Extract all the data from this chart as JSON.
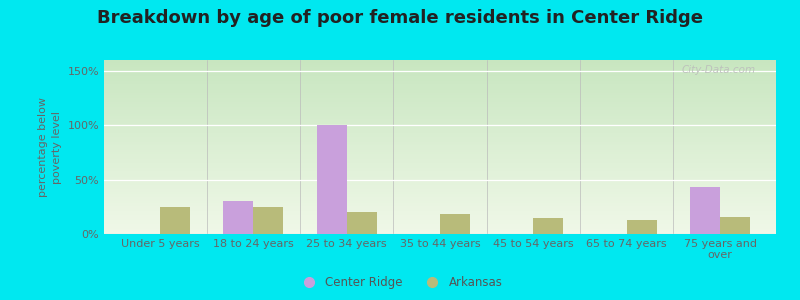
{
  "title": "Breakdown by age of poor female residents in Center Ridge",
  "categories": [
    "Under 5 years",
    "18 to 24 years",
    "25 to 34 years",
    "35 to 44 years",
    "45 to 54 years",
    "65 to 74 years",
    "75 years and\nover"
  ],
  "center_ridge": [
    0,
    30,
    100,
    0,
    0,
    0,
    43
  ],
  "arkansas": [
    25,
    25,
    20,
    18,
    15,
    13,
    16
  ],
  "center_ridge_color": "#c9a0dc",
  "arkansas_color": "#b8bb7a",
  "ylabel": "percentage below\npoverty level",
  "ylim": [
    0,
    160
  ],
  "yticks": [
    0,
    50,
    100,
    150
  ],
  "ytick_labels": [
    "0%",
    "50%",
    "100%",
    "150%"
  ],
  "legend_labels": [
    "Center Ridge",
    "Arkansas"
  ],
  "bg_top_color": "#c8e6c0",
  "bg_bottom_color": "#f0f8e8",
  "outer_background": "#00e8f0",
  "title_fontsize": 13,
  "axis_fontsize": 8,
  "bar_width": 0.32,
  "watermark": "City-Data.com"
}
